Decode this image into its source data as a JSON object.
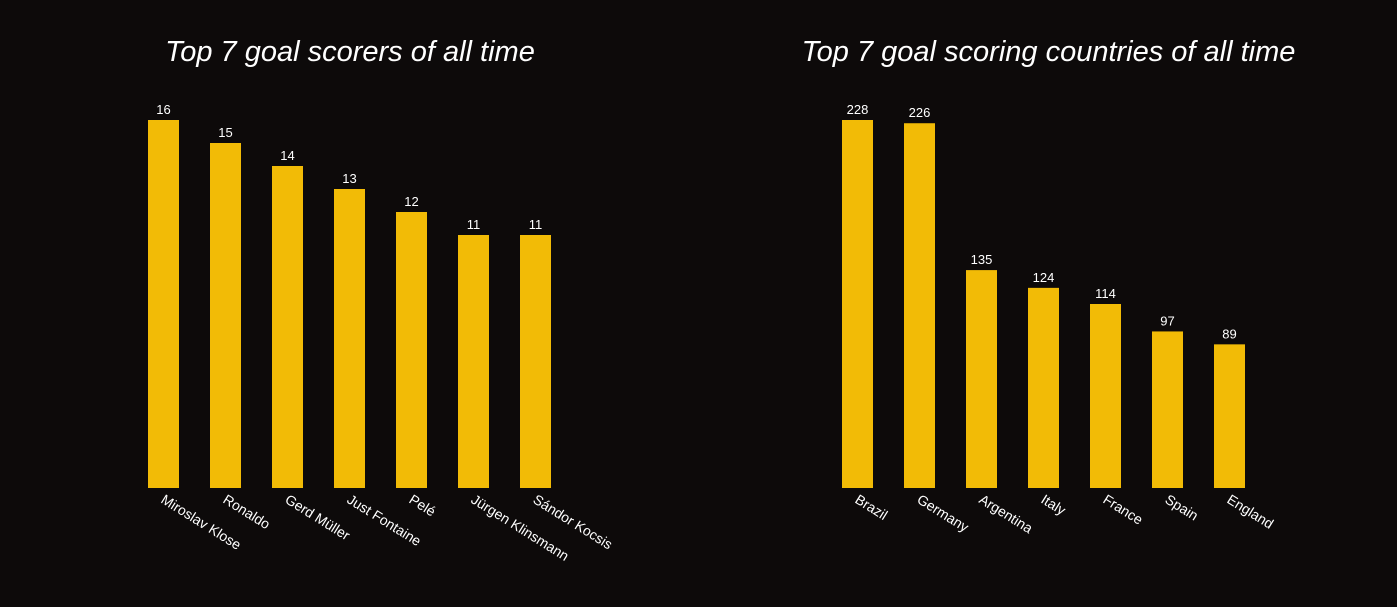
{
  "colors": {
    "background": "#0d0a0a",
    "bar": "#f2bb06",
    "text": "#ffffff"
  },
  "chart_data": [
    {
      "type": "bar",
      "title": "Top 7 goal scorers of all time",
      "categories": [
        "Miroslav Klose",
        "Ronaldo",
        "Gerd Müller",
        "Just Fontaine",
        "Pelé",
        "Jürgen Klinsmann",
        "Sándor Kocsis"
      ],
      "values": [
        16,
        15,
        14,
        13,
        12,
        11,
        11
      ],
      "xlabel": "",
      "ylabel": "",
      "ylim": [
        0,
        16
      ],
      "grid": false,
      "tick_label_rotation": "diagonal"
    },
    {
      "type": "bar",
      "title": "Top 7 goal scoring countries of all time",
      "categories": [
        "Brazil",
        "Germany",
        "Argentina",
        "Italy",
        "France",
        "Spain",
        "England"
      ],
      "values": [
        228,
        226,
        135,
        124,
        114,
        97,
        89
      ],
      "xlabel": "",
      "ylabel": "",
      "ylim": [
        0,
        228
      ],
      "grid": false,
      "tick_label_rotation": "diagonal"
    }
  ]
}
